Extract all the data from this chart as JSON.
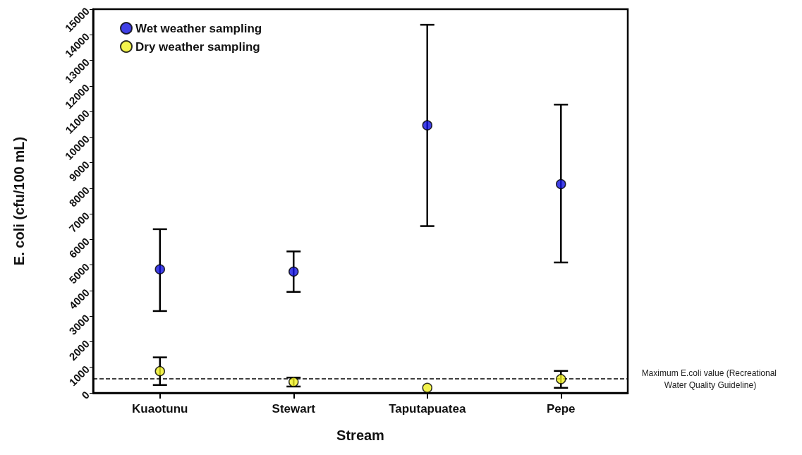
{
  "chart_data": {
    "type": "scatter",
    "xlabel": "Stream",
    "ylabel": "E. coli (cfu/100 mL)",
    "categories": [
      "Kuaotunu",
      "Stewart",
      "Taputapuatea",
      "Pepe"
    ],
    "series": [
      {
        "name": "Wet weather sampling",
        "color": "#1010e0",
        "values": [
          4830,
          4740,
          10460,
          8160
        ],
        "errors": [
          [
            3200,
            6400
          ],
          [
            3950,
            5530
          ],
          [
            6520,
            14390
          ],
          [
            5100,
            11270
          ]
        ]
      },
      {
        "name": "Dry weather sampling",
        "color": "#f0f020",
        "values": [
          850,
          430,
          200,
          540
        ],
        "errors": [
          [
            310,
            1390
          ],
          [
            250,
            600
          ],
          null,
          [
            200,
            860
          ]
        ]
      }
    ],
    "ylim": [
      0,
      15000
    ],
    "yticks": [
      0,
      1000,
      2000,
      3000,
      4000,
      5000,
      6000,
      7000,
      8000,
      9000,
      10000,
      11000,
      12000,
      13000,
      14000,
      15000
    ],
    "ref_lines": [
      {
        "axis": "y",
        "value": 550,
        "label": "Maximum E.coli value (Recreational Water Quality Guideline)",
        "line_style": "dashed",
        "color": "#000000"
      }
    ],
    "legend": "top left",
    "marker": "circle",
    "grid": false
  }
}
